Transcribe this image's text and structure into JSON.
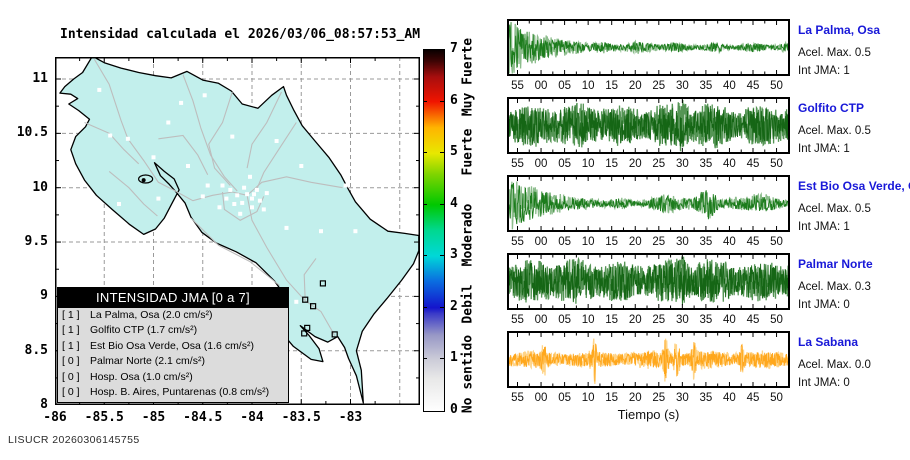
{
  "map": {
    "title": "Intensidad calculada el 2026/03/06_08:57:53_AM",
    "x_ticks": [
      "-86",
      "-85.5",
      "-85",
      "-84.5",
      "-84",
      "-83.5",
      "-83"
    ],
    "y_ticks": [
      "11",
      "10.5",
      "10",
      "9.5",
      "9",
      "8.5",
      "8"
    ],
    "land_color": "#c2efec",
    "legend": {
      "title": "INTENSIDAD JMA [0 a 7]",
      "items": [
        {
          "value": "[ 1 ]",
          "label": "La Palma, Osa (2.0 cm/s²)"
        },
        {
          "value": "[ 1 ]",
          "label": "Golfito CTP (1.7 cm/s²)"
        },
        {
          "value": "[ 1 ]",
          "label": "Est Bio Osa Verde, Osa (1.6 cm/s²)"
        },
        {
          "value": "[ 0 ]",
          "label": "Palmar Norte (2.1 cm/s²)"
        },
        {
          "value": "[ 0 ]",
          "label": "Hosp. Osa (1.0 cm/s²)"
        },
        {
          "value": "[ 0 ]",
          "label": "Hosp. B. Aires, Puntarenas (0.8 cm/s²)"
        }
      ]
    }
  },
  "colorbar": {
    "ticks": [
      "7",
      "6",
      "5",
      "4",
      "3",
      "2",
      "1",
      "0"
    ],
    "labels": [
      "Muy Fuerte",
      "Fuerte",
      "Moderado",
      "Debil",
      "No sentido"
    ]
  },
  "footer": "LISUCR 20260306145755",
  "chart_data": {
    "type": "line",
    "title": "Intensidad calculada el 2026/03/06_08:57:53_AM",
    "xlabel": "Tiempo (s)",
    "x_tick_labels": [
      "55",
      "00",
      "05",
      "10",
      "15",
      "20",
      "25",
      "30",
      "35",
      "40",
      "45",
      "50"
    ],
    "map_axes": {
      "lon_range": [
        -86,
        -83
      ],
      "lat_range": [
        8,
        11
      ],
      "grid": true
    },
    "intensity_scale": {
      "range": [
        0,
        7
      ],
      "categories": [
        "No sentido",
        "Debil",
        "Moderado",
        "Fuerte",
        "Muy Fuerte"
      ]
    },
    "stations": [
      {
        "name": "La Palma, Osa",
        "acel_label": "Acel. Max. 0.5",
        "int_label": "Int JMA: 1",
        "acel_max": 0.5,
        "int_jma": 1,
        "pga": "2.0 cm/s²",
        "color": "#1c7c1c",
        "color2": "#8dbd8d",
        "profile": "decay",
        "seed": 11
      },
      {
        "name": "Golfito CTP",
        "acel_label": "Acel. Max. 0.5",
        "int_label": "Int JMA: 1",
        "acel_max": 0.5,
        "int_jma": 1,
        "pga": "1.7 cm/s²",
        "color": "#156615",
        "color2": "#559555",
        "profile": "constant-large",
        "seed": 22
      },
      {
        "name": "Est Bio Osa Verde, Osa",
        "acel_label": "Acel. Max. 0.5",
        "int_label": "Int JMA: 1",
        "acel_max": 0.5,
        "int_jma": 1,
        "pga": "1.6 cm/s²",
        "color": "#1c7c1c",
        "color2": "#8dbd8d",
        "profile": "decay-burst",
        "seed": 33
      },
      {
        "name": "Palmar Norte",
        "acel_label": "Acel. Max. 0.3",
        "int_label": "Int JMA: 0",
        "acel_max": 0.3,
        "int_jma": 0,
        "pga": "2.1 cm/s²",
        "color": "#156615",
        "color2": "#559555",
        "profile": "constant-large",
        "seed": 44
      },
      {
        "name": "La Sabana",
        "acel_label": "Acel. Max. 0.0",
        "int_label": "Int JMA: 0",
        "acel_max": 0.0,
        "int_jma": 0,
        "pga": "",
        "color": "#ffa71c",
        "color2": "#ffd488",
        "profile": "constant-medium",
        "seed": 55
      }
    ],
    "xlabel_key": "Tiempo (s)"
  },
  "seismograms": {
    "xlabel": "Tiempo (s)"
  }
}
